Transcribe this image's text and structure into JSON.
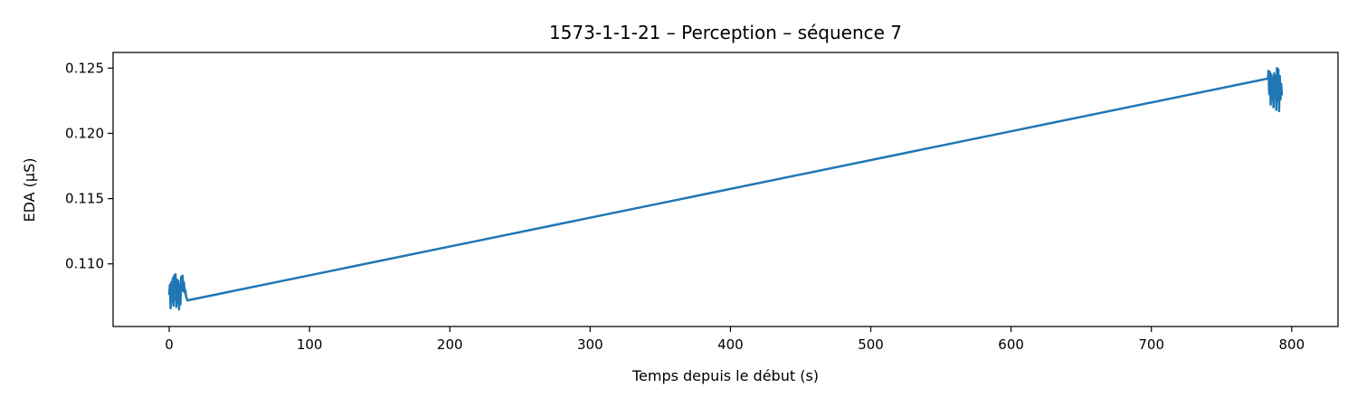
{
  "chart_data": {
    "type": "line",
    "title": "1573-1-1-21 – Perception – séquence 7",
    "xlabel": "Temps depuis le début (s)",
    "ylabel": "EDA (µS)",
    "xlim": [
      -40,
      833
    ],
    "ylim": [
      0.1052,
      0.1262
    ],
    "xticks": [
      0,
      100,
      200,
      300,
      400,
      500,
      600,
      700,
      800
    ],
    "yticks": [
      0.11,
      0.115,
      0.12,
      0.125
    ],
    "ytick_labels": [
      "0.110",
      "0.115",
      "0.120",
      "0.125"
    ],
    "grid": false,
    "legend": "none",
    "series": [
      {
        "color": "#1f77b4",
        "x": [
          0,
          0.5,
          1,
          1.5,
          2,
          2.5,
          3,
          3.5,
          4,
          4.5,
          5,
          5.5,
          6,
          6.5,
          7,
          7.5,
          8,
          8.5,
          9,
          9.5,
          10,
          10.5,
          11,
          11.5,
          12,
          13,
          783,
          783.5,
          784,
          784.5,
          785,
          785.5,
          786,
          786.5,
          787,
          787.5,
          788,
          788.5,
          789,
          789.5,
          790,
          790.5,
          791,
          791.5,
          792,
          792.5,
          793
        ],
        "y": [
          0.1077,
          0.1084,
          0.1066,
          0.1086,
          0.1071,
          0.1089,
          0.1068,
          0.1091,
          0.1073,
          0.1092,
          0.1067,
          0.1088,
          0.107,
          0.1087,
          0.1065,
          0.1084,
          0.1069,
          0.109,
          0.108,
          0.1091,
          0.1079,
          0.1086,
          0.1078,
          0.108,
          0.1075,
          0.1072,
          0.1242,
          0.1248,
          0.123,
          0.1247,
          0.1222,
          0.1245,
          0.1226,
          0.1243,
          0.122,
          0.1246,
          0.1228,
          0.1244,
          0.1218,
          0.125,
          0.1225,
          0.1249,
          0.1217,
          0.1244,
          0.1226,
          0.1238,
          0.123
        ]
      }
    ]
  }
}
